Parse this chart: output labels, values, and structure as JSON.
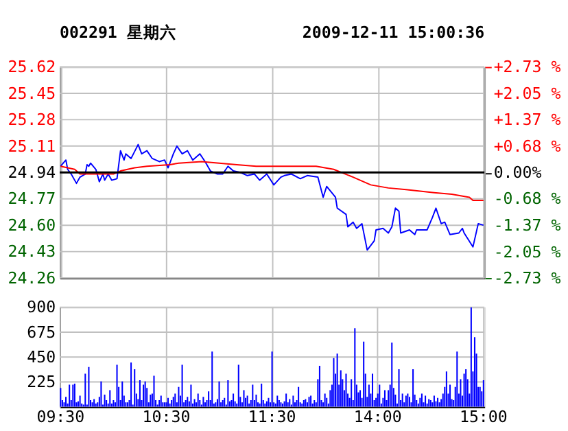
{
  "chart_data": [
    {
      "type": "line",
      "title": "002291 星期六",
      "annotations": [
        "2009-12-11 15:00:36"
      ],
      "grid": true,
      "tick_labels": "y",
      "categories": [
        null,
        null,
        null,
        null,
        null,
        null,
        null,
        null,
        null,
        null,
        null,
        null,
        null,
        null,
        null,
        null,
        null,
        null,
        null,
        null,
        null,
        null,
        null,
        null,
        null,
        null,
        null,
        null,
        null,
        null,
        null,
        null,
        null,
        null,
        null,
        null,
        null,
        null,
        null,
        null,
        null,
        null,
        null,
        null,
        null,
        null,
        null,
        null,
        null,
        null,
        null,
        null,
        null,
        null,
        null,
        null,
        null,
        null,
        null,
        null,
        null,
        null,
        null,
        null,
        null,
        null,
        null,
        null,
        null,
        null,
        null,
        null,
        null,
        null,
        null,
        null,
        null,
        null,
        null,
        null,
        null,
        null,
        null,
        null,
        null,
        null,
        null,
        null,
        null,
        null,
        null,
        null,
        null,
        null,
        null,
        null,
        null,
        null,
        null,
        null,
        null,
        null,
        null,
        null,
        null,
        null,
        null,
        null,
        null,
        null,
        null,
        null,
        null,
        null,
        null,
        null,
        null,
        null,
        null,
        null,
        null,
        null,
        null,
        null,
        null,
        null,
        null,
        null,
        null,
        null,
        null,
        null,
        null,
        null,
        null,
        null,
        null,
        null,
        null,
        null,
        null,
        null,
        null,
        null,
        null,
        null,
        null,
        null,
        null,
        null,
        null,
        null,
        null,
        null,
        null,
        null,
        null,
        null,
        null,
        null,
        null,
        null,
        null,
        null,
        null,
        null,
        null,
        null,
        null,
        null,
        null,
        null,
        null,
        null,
        null,
        null,
        null,
        null,
        null,
        null,
        null,
        null,
        null,
        null,
        null,
        null,
        null,
        null,
        null,
        null,
        null,
        null,
        null,
        null,
        null,
        null,
        null,
        null,
        null,
        null,
        null,
        null,
        null,
        null,
        null,
        null,
        null,
        null,
        null,
        null,
        null,
        null,
        null,
        null,
        null,
        null,
        null,
        null,
        null,
        null,
        null,
        null,
        null,
        null,
        null,
        null,
        null,
        null,
        null,
        null,
        null,
        null,
        null,
        null,
        null,
        null,
        null,
        null,
        null,
        null,
        null
      ],
      "ylim": [
        24.26,
        25.62
      ],
      "yticks": [
        24.26,
        24.43,
        {
          "value": 24.6,
          "label": "24.60"
        },
        24.77,
        24.94,
        25.11,
        25.28,
        25.45,
        25.62
      ],
      "y2lim": [
        -2.73,
        2.73
      ],
      "y2ticks": [
        {
          "value": -2.73,
          "label": "-2.73 %"
        },
        {
          "value": -2.05,
          "label": "-2.05 %"
        },
        {
          "value": -1.37,
          "label": "-1.37 %"
        },
        {
          "value": -0.68,
          "label": "-0.68 %"
        },
        {
          "value": 0,
          "label": "0.00%"
        },
        {
          "value": 0.68,
          "label": "+0.68 %"
        },
        {
          "value": 1.37,
          "label": "+1.37 %"
        },
        {
          "value": 2.05,
          "label": "+2.05 %"
        },
        {
          "value": 2.73,
          "label": "+2.73 %"
        }
      ],
      "ref_lines": [
        {
          "axis": "y2",
          "value": 0,
          "color": "#000000"
        }
      ],
      "series": [
        {
          "color": "#0000ff",
          "values": [
            24.98,
            null,
            null,
            25.02,
            24.96,
            null,
            24.93,
            null,
            null,
            24.87,
            null,
            24.91,
            null,
            null,
            24.93,
            24.99,
            24.98,
            25.0,
            null,
            null,
            24.96,
            null,
            24.88,
            null,
            24.93,
            24.89,
            null,
            24.93,
            null,
            24.89,
            null,
            null,
            24.9,
            null,
            25.08,
            null,
            25.02,
            25.06,
            null,
            null,
            25.03,
            null,
            null,
            null,
            25.12,
            null,
            25.06,
            null,
            null,
            25.08,
            null,
            null,
            25.03,
            null,
            null,
            null,
            25.01,
            null,
            null,
            25.02,
            null,
            24.97,
            null,
            null,
            25.06,
            null,
            25.11,
            null,
            null,
            25.06,
            null,
            null,
            25.08,
            null,
            null,
            25.02,
            null,
            null,
            null,
            25.06,
            null,
            null,
            25.01,
            null,
            null,
            24.95,
            null,
            null,
            null,
            24.93,
            null,
            null,
            24.93,
            null,
            null,
            24.98,
            null,
            null,
            24.95,
            null,
            null,
            null,
            24.94,
            null,
            null,
            null,
            24.92,
            null,
            null,
            null,
            24.93,
            null,
            null,
            24.89,
            null,
            null,
            null,
            24.93,
            null,
            null,
            null,
            24.86,
            null,
            null,
            null,
            24.91,
            null,
            24.92,
            null,
            null,
            null,
            24.93,
            null,
            null,
            null,
            null,
            24.9,
            null,
            null,
            null,
            24.92,
            null,
            null,
            null,
            null,
            null,
            24.91,
            null,
            null,
            24.78,
            null,
            24.85,
            null,
            null,
            null,
            null,
            24.78,
            24.71,
            null,
            null,
            null,
            null,
            24.67,
            24.59,
            null,
            null,
            24.62,
            null,
            24.58,
            null,
            null,
            24.61,
            null,
            null,
            24.44,
            null,
            null,
            null,
            24.5,
            24.57,
            null,
            null,
            null,
            24.58,
            null,
            null,
            24.55,
            null,
            24.59,
            null,
            24.71,
            null,
            24.69,
            24.55,
            null,
            null,
            null,
            null,
            24.57,
            null,
            null,
            24.54,
            24.57,
            null,
            null,
            null,
            null,
            null,
            24.57,
            null,
            null,
            24.65,
            null,
            24.71,
            null,
            null,
            24.61,
            null,
            24.62,
            null,
            null,
            24.54,
            null,
            null,
            null,
            null,
            24.55,
            null,
            24.58,
            24.55,
            null,
            null,
            null,
            null,
            24.46,
            null,
            null,
            24.61,
            null,
            null,
            24.6
          ]
        },
        {
          "color": "#ff0000",
          "values": [
            24.98,
            null,
            null,
            null,
            null,
            null,
            null,
            null,
            24.96,
            null,
            null,
            24.93,
            null,
            null,
            null,
            null,
            null,
            null,
            null,
            null,
            null,
            null,
            null,
            null,
            null,
            null,
            null,
            null,
            null,
            null,
            24.93,
            null,
            null,
            null,
            24.95,
            null,
            null,
            null,
            null,
            null,
            null,
            null,
            24.97,
            null,
            null,
            null,
            null,
            null,
            null,
            24.98,
            null,
            null,
            null,
            null,
            null,
            null,
            null,
            null,
            null,
            null,
            null,
            null,
            24.99,
            null,
            null,
            null,
            null,
            25.0,
            null,
            null,
            null,
            null,
            null,
            null,
            null,
            null,
            null,
            null,
            null,
            null,
            25.01,
            null,
            null,
            null,
            null,
            null,
            null,
            null,
            null,
            null,
            null,
            null,
            null,
            null,
            null,
            null,
            null,
            null,
            null,
            null,
            24.99,
            null,
            null,
            null,
            null,
            null,
            null,
            null,
            null,
            null,
            null,
            24.98,
            null,
            null,
            null,
            null,
            null,
            null,
            null,
            null,
            null,
            null,
            null,
            null,
            null,
            null,
            null,
            24.98,
            null,
            null,
            null,
            null,
            null,
            null,
            null,
            null,
            null,
            null,
            null,
            null,
            null,
            null,
            null,
            null,
            null,
            24.98,
            null,
            null,
            null,
            null,
            null,
            null,
            null,
            null,
            null,
            24.96,
            null,
            null,
            null,
            null,
            null,
            null,
            null,
            null,
            null,
            null,
            24.91,
            null,
            null,
            null,
            null,
            null,
            null,
            null,
            null,
            null,
            24.86,
            null,
            null,
            null,
            null,
            null,
            null,
            null,
            null,
            null,
            24.84,
            null,
            null,
            null,
            null,
            null,
            null,
            null,
            null,
            null,
            24.83,
            null,
            null,
            null,
            null,
            null,
            null,
            null,
            null,
            null,
            null,
            null,
            null,
            null,
            null,
            null,
            24.81,
            null,
            null,
            null,
            null,
            null,
            null,
            null,
            null,
            null,
            24.8,
            null,
            null,
            null,
            null,
            null,
            null,
            null,
            null,
            null,
            24.78,
            null,
            24.76,
            null,
            null,
            null,
            null,
            null,
            24.76
          ]
        }
      ]
    },
    {
      "type": "bar",
      "grid": true,
      "categories": [
        "09:30",
        null,
        null,
        null,
        null,
        null,
        null,
        null,
        null,
        null,
        null,
        null,
        null,
        null,
        null,
        null,
        null,
        null,
        null,
        null,
        null,
        null,
        null,
        null,
        null,
        null,
        null,
        null,
        null,
        null,
        null,
        null,
        null,
        null,
        null,
        null,
        null,
        null,
        null,
        null,
        null,
        null,
        null,
        null,
        null,
        null,
        null,
        null,
        null,
        null,
        null,
        null,
        null,
        null,
        null,
        null,
        null,
        null,
        null,
        null,
        "10:30",
        null,
        null,
        null,
        null,
        null,
        null,
        null,
        null,
        null,
        null,
        null,
        null,
        null,
        null,
        null,
        null,
        null,
        null,
        null,
        null,
        null,
        null,
        null,
        null,
        null,
        null,
        null,
        null,
        null,
        null,
        null,
        null,
        null,
        null,
        null,
        null,
        null,
        null,
        null,
        null,
        null,
        null,
        null,
        null,
        null,
        null,
        null,
        null,
        null,
        null,
        null,
        null,
        null,
        null,
        null,
        null,
        null,
        null,
        null,
        "11:30",
        null,
        null,
        null,
        null,
        null,
        null,
        null,
        null,
        null,
        null,
        null,
        null,
        null,
        null,
        null,
        null,
        null,
        null,
        null,
        null,
        null,
        null,
        null,
        null,
        null,
        null,
        null,
        null,
        null,
        null,
        null,
        null,
        null,
        null,
        null,
        null,
        null,
        null,
        null,
        null,
        null,
        null,
        null,
        null,
        null,
        null,
        null,
        null,
        null,
        null,
        null,
        null,
        null,
        null,
        null,
        null,
        null,
        null,
        null,
        "14:00",
        null,
        null,
        null,
        null,
        null,
        null,
        null,
        null,
        null,
        null,
        null,
        null,
        null,
        null,
        null,
        null,
        null,
        null,
        null,
        null,
        null,
        null,
        null,
        null,
        null,
        null,
        null,
        null,
        null,
        null,
        null,
        null,
        null,
        null,
        null,
        null,
        null,
        null,
        null,
        null,
        null,
        null,
        null,
        null,
        null,
        null,
        null,
        null,
        null,
        null,
        null,
        null,
        null,
        null,
        null,
        null,
        null,
        null,
        null,
        "15:00"
      ],
      "ylim": [
        0,
        900
      ],
      "yticks": [
        225,
        450,
        675,
        900
      ],
      "series": [
        {
          "color": "#0000ff",
          "values": [
            170,
            60,
            40,
            90,
            30,
            200,
            60,
            200,
            210,
            40,
            50,
            100,
            30,
            20,
            300,
            20,
            360,
            60,
            40,
            70,
            30,
            40,
            90,
            230,
            20,
            110,
            60,
            30,
            150,
            30,
            60,
            40,
            380,
            180,
            60,
            230,
            100,
            40,
            40,
            60,
            400,
            20,
            340,
            120,
            70,
            240,
            60,
            200,
            230,
            170,
            40,
            110,
            120,
            280,
            60,
            20,
            60,
            100,
            40,
            40,
            40,
            80,
            30,
            60,
            90,
            120,
            40,
            180,
            100,
            380,
            40,
            60,
            90,
            50,
            200,
            30,
            70,
            40,
            120,
            60,
            20,
            90,
            40,
            60,
            140,
            60,
            500,
            30,
            40,
            70,
            230,
            40,
            60,
            80,
            20,
            240,
            50,
            60,
            120,
            50,
            30,
            380,
            90,
            40,
            150,
            80,
            100,
            30,
            60,
            200,
            60,
            110,
            40,
            30,
            210,
            60,
            30,
            50,
            80,
            40,
            500,
            40,
            30,
            100,
            60,
            40,
            30,
            50,
            120,
            40,
            70,
            20,
            100,
            40,
            60,
            180,
            40,
            30,
            60,
            70,
            40,
            90,
            100,
            30,
            60,
            40,
            250,
            370,
            60,
            40,
            120,
            80,
            30,
            150,
            200,
            440,
            300,
            480,
            200,
            330,
            250,
            150,
            300,
            120,
            80,
            250,
            60,
            710,
            200,
            130,
            150,
            80,
            590,
            300,
            90,
            200,
            120,
            300,
            60,
            80,
            120,
            200,
            30,
            80,
            150,
            60,
            150,
            200,
            580,
            170,
            110,
            30,
            340,
            60,
            120,
            40,
            100,
            120,
            90,
            40,
            340,
            110,
            60,
            30,
            80,
            120,
            40,
            100,
            30,
            70,
            60,
            40,
            100,
            50,
            80,
            40,
            70,
            120,
            180,
            320,
            120,
            200,
            70,
            60,
            180,
            500,
            120,
            250,
            100,
            300,
            340,
            250,
            120,
            900,
            320,
            630,
            480,
            180,
            180,
            140,
            240
          ]
        }
      ]
    }
  ]
}
